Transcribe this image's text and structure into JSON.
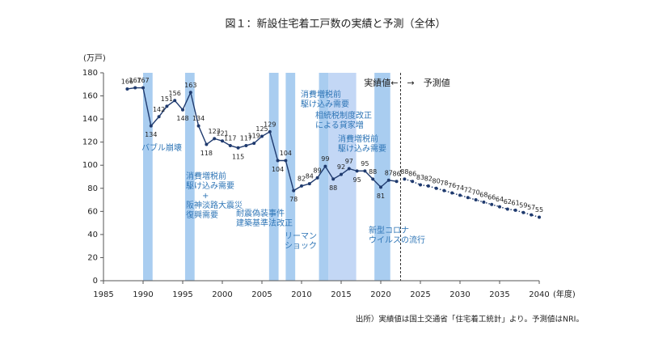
{
  "chart_data": {
    "type": "line",
    "title": "図１：新設住宅着工戸数の実績と予測（全体）",
    "y_label": "(万戸)",
    "x_label": "(年度)",
    "xlim": [
      1985,
      2040
    ],
    "xticks": [
      1985,
      1990,
      1995,
      2000,
      2005,
      2010,
      2015,
      2020,
      2025,
      2030,
      2035,
      2040
    ],
    "ylim": [
      0,
      180
    ],
    "yticks": [
      0,
      20,
      40,
      60,
      80,
      100,
      120,
      140,
      160,
      180
    ],
    "series": [
      {
        "name": "実績値",
        "color": "#1f3a6e",
        "style": "solid",
        "x": [
          1988,
          1989,
          1990,
          1991,
          1992,
          1993,
          1994,
          1995,
          1996,
          1997,
          1998,
          1999,
          2000,
          2001,
          2002,
          2003,
          2004,
          2005,
          2006,
          2007,
          2008,
          2009,
          2010,
          2011,
          2012,
          2013,
          2014,
          2015,
          2016,
          2017,
          2018,
          2019,
          2020,
          2021,
          2022
        ],
        "values": [
          166,
          167,
          167,
          134,
          142,
          151,
          156,
          148,
          163,
          134,
          118,
          123,
          121,
          117,
          115,
          117,
          119,
          125,
          129,
          104,
          104,
          78,
          82,
          84,
          89,
          99,
          88,
          92,
          97,
          95,
          95,
          88,
          81,
          87,
          86
        ]
      },
      {
        "name": "予測値",
        "color": "#1f3a6e",
        "style": "dotted",
        "x": [
          2023,
          2024,
          2025,
          2026,
          2027,
          2028,
          2029,
          2030,
          2031,
          2032,
          2033,
          2034,
          2035,
          2036,
          2037,
          2038,
          2039,
          2040
        ],
        "values": [
          88,
          86,
          83,
          82,
          80,
          78,
          76,
          74,
          72,
          70,
          68,
          66,
          64,
          62,
          61,
          59,
          57,
          55
        ]
      }
    ],
    "bands": [
      {
        "x": [
          1990,
          1991.2
        ]
      },
      {
        "x": [
          1995.3,
          1996.5
        ]
      },
      {
        "x": [
          2005.9,
          2007.1
        ]
      },
      {
        "x": [
          2008,
          2009.2
        ]
      },
      {
        "x": [
          2012.2,
          2013.4
        ]
      },
      {
        "x": [
          2013.4,
          2016.9
        ],
        "light": true
      },
      {
        "x": [
          2019.2,
          2021.2
        ]
      }
    ],
    "annotations": [
      {
        "lines": [
          "バブル崩壊"
        ]
      },
      {
        "lines": [
          "消費増税前",
          "駆け込み需要",
          "+",
          "阪神淡路大震災",
          "復興需要"
        ]
      },
      {
        "lines": [
          "耐震偽装事件",
          "建築基準法改正"
        ]
      },
      {
        "lines": [
          "リーマン",
          "ショック"
        ]
      },
      {
        "lines": [
          "消費増税前",
          "駆け込み需要"
        ]
      },
      {
        "lines": [
          "相続税制度改正",
          "による貸家増"
        ]
      },
      {
        "lines": [
          "消費増税前",
          "駆け込み需要"
        ]
      },
      {
        "lines": [
          "新型コロナ",
          "ウイルスの流行"
        ]
      }
    ],
    "actual_label": "実績値←",
    "forecast_label": "→　予測値",
    "source": "出所）実績値は国土交通省「住宅着工統計」より。予測値はNRI。"
  }
}
